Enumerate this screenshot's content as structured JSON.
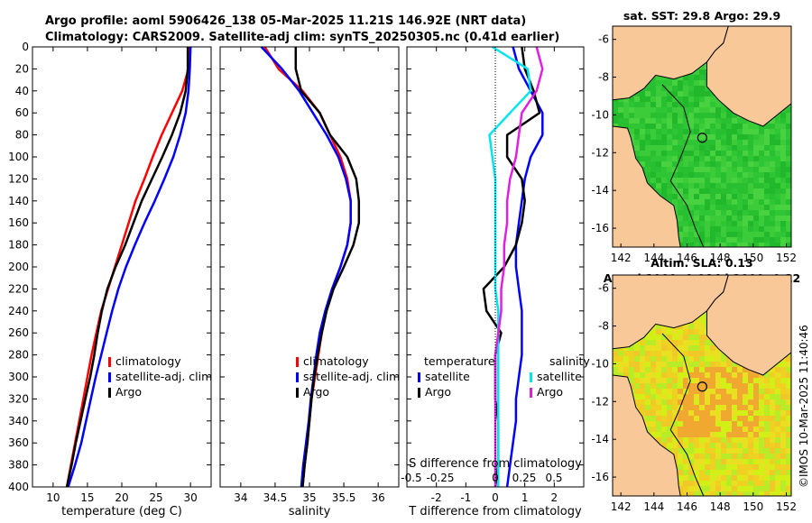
{
  "header": {
    "title_line1": "Argo profile: aoml 5906426_138 05-Mar-2025 11.21S 146.92E (NRT data)",
    "title_line2": "Climatology: CARS2009. Satellite-adj clim: synTS_20250305.nc (0.41d earlier)"
  },
  "colors": {
    "climatology": "#ff0000",
    "satellite": "#0000ff",
    "argo": "#000000",
    "salinity_sat": "#00e5ee",
    "salinity_argo": "#e020e0",
    "land": "#f8c898"
  },
  "chart_data": [
    {
      "type": "line",
      "name": "temperature",
      "xlabel": "temperature (deg C)",
      "xlim": [
        7,
        33
      ],
      "ylim": [
        400,
        0
      ],
      "xticks": [
        10,
        15,
        20,
        25,
        30
      ],
      "yticks": [
        0,
        20,
        40,
        60,
        80,
        100,
        120,
        140,
        160,
        180,
        200,
        220,
        240,
        260,
        280,
        300,
        320,
        340,
        360,
        380,
        400
      ],
      "legend": [
        "climatology",
        "satellite-adj. clim",
        "Argo"
      ],
      "series": [
        {
          "name": "climatology",
          "color": "#ff0000",
          "points": [
            [
              29.8,
              0
            ],
            [
              29.7,
              20
            ],
            [
              28.8,
              40
            ],
            [
              27.3,
              60
            ],
            [
              25.8,
              80
            ],
            [
              24.5,
              100
            ],
            [
              23.3,
              120
            ],
            [
              22,
              140
            ],
            [
              21,
              160
            ],
            [
              20,
              180
            ],
            [
              19,
              200
            ],
            [
              18,
              220
            ],
            [
              17,
              240
            ],
            [
              16.3,
              260
            ],
            [
              15.6,
              280
            ],
            [
              15,
              300
            ],
            [
              14.4,
              320
            ],
            [
              13.8,
              340
            ],
            [
              13.2,
              360
            ],
            [
              12.6,
              380
            ],
            [
              12,
              400
            ]
          ]
        },
        {
          "name": "satellite-adj. clim",
          "color": "#0000ff",
          "points": [
            [
              30,
              0
            ],
            [
              29.9,
              20
            ],
            [
              29.7,
              40
            ],
            [
              29.3,
              60
            ],
            [
              28.5,
              80
            ],
            [
              27.5,
              100
            ],
            [
              26.2,
              120
            ],
            [
              24.8,
              140
            ],
            [
              23.3,
              160
            ],
            [
              21.9,
              180
            ],
            [
              20.6,
              200
            ],
            [
              19.5,
              220
            ],
            [
              18.6,
              240
            ],
            [
              17.8,
              260
            ],
            [
              17,
              280
            ],
            [
              16.2,
              300
            ],
            [
              15.5,
              320
            ],
            [
              14.8,
              340
            ],
            [
              14.1,
              360
            ],
            [
              13.2,
              380
            ],
            [
              12.2,
              400
            ]
          ]
        },
        {
          "name": "Argo",
          "color": "#000000",
          "points": [
            [
              29.6,
              0
            ],
            [
              29.6,
              20
            ],
            [
              29.3,
              40
            ],
            [
              28.5,
              60
            ],
            [
              27.3,
              80
            ],
            [
              25.9,
              100
            ],
            [
              24.4,
              120
            ],
            [
              22.9,
              140
            ],
            [
              21.7,
              160
            ],
            [
              20.5,
              180
            ],
            [
              19.1,
              200
            ],
            [
              17.9,
              220
            ],
            [
              17.1,
              240
            ],
            [
              16.5,
              260
            ],
            [
              16,
              280
            ],
            [
              15.4,
              300
            ],
            [
              14.7,
              320
            ],
            [
              14,
              340
            ],
            [
              13.3,
              360
            ],
            [
              12.7,
              380
            ],
            [
              12,
              400
            ]
          ]
        }
      ]
    },
    {
      "type": "line",
      "name": "salinity",
      "xlabel": "salinity",
      "xlim": [
        33.7,
        36.3
      ],
      "ylim": [
        400,
        0
      ],
      "xticks": [
        34,
        34.5,
        35,
        35.5,
        36
      ],
      "legend": [
        "climatology",
        "satellite-adj. clim",
        "Argo"
      ],
      "series": [
        {
          "name": "climatology",
          "color": "#ff0000",
          "points": [
            [
              34.35,
              0
            ],
            [
              34.55,
              20
            ],
            [
              34.9,
              40
            ],
            [
              35.15,
              60
            ],
            [
              35.3,
              80
            ],
            [
              35.45,
              100
            ],
            [
              35.55,
              120
            ],
            [
              35.6,
              140
            ],
            [
              35.6,
              160
            ],
            [
              35.55,
              180
            ],
            [
              35.45,
              200
            ],
            [
              35.33,
              220
            ],
            [
              35.24,
              240
            ],
            [
              35.18,
              260
            ],
            [
              35.13,
              280
            ],
            [
              35.08,
              300
            ],
            [
              35.03,
              320
            ],
            [
              35.0,
              340
            ],
            [
              34.97,
              360
            ],
            [
              34.93,
              380
            ],
            [
              34.9,
              400
            ]
          ]
        },
        {
          "name": "satellite-adj. clim",
          "color": "#0000ff",
          "points": [
            [
              34.3,
              0
            ],
            [
              34.6,
              20
            ],
            [
              34.85,
              40
            ],
            [
              35.05,
              60
            ],
            [
              35.25,
              80
            ],
            [
              35.42,
              100
            ],
            [
              35.53,
              120
            ],
            [
              35.6,
              140
            ],
            [
              35.6,
              160
            ],
            [
              35.55,
              180
            ],
            [
              35.45,
              200
            ],
            [
              35.33,
              220
            ],
            [
              35.23,
              240
            ],
            [
              35.15,
              260
            ],
            [
              35.1,
              280
            ],
            [
              35.06,
              300
            ],
            [
              35.02,
              320
            ],
            [
              34.99,
              340
            ],
            [
              34.95,
              360
            ],
            [
              34.91,
              380
            ],
            [
              34.88,
              400
            ]
          ]
        },
        {
          "name": "Argo",
          "color": "#000000",
          "points": [
            [
              34.8,
              0
            ],
            [
              34.8,
              20
            ],
            [
              34.88,
              40
            ],
            [
              35.15,
              60
            ],
            [
              35.3,
              80
            ],
            [
              35.55,
              100
            ],
            [
              35.68,
              120
            ],
            [
              35.72,
              140
            ],
            [
              35.72,
              160
            ],
            [
              35.64,
              180
            ],
            [
              35.5,
              200
            ],
            [
              35.35,
              220
            ],
            [
              35.25,
              240
            ],
            [
              35.18,
              260
            ],
            [
              35.12,
              280
            ],
            [
              35.07,
              300
            ],
            [
              35.03,
              320
            ],
            [
              35.0,
              340
            ],
            [
              34.97,
              360
            ],
            [
              34.93,
              380
            ],
            [
              34.9,
              400
            ]
          ]
        }
      ]
    },
    {
      "type": "line",
      "name": "difference",
      "xlabel": "T difference from climatology",
      "xlabel2": "S difference from climatology",
      "xlim": [
        -3,
        3
      ],
      "ylim": [
        400,
        0
      ],
      "xticks": [
        -2,
        -1,
        0,
        1,
        2
      ],
      "s_ticks": [
        "-0.5",
        "-0.25",
        "0",
        "0.25",
        "0.5"
      ],
      "legend_temperature_title": "temperature",
      "legend_salinity_title": "salinity",
      "legend_entries": [
        "satellite",
        "Argo",
        "satellite",
        "Argo"
      ],
      "series": [
        {
          "name": "T satellite",
          "color": "#0000ff",
          "points": [
            [
              0.6,
              0
            ],
            [
              0.8,
              20
            ],
            [
              1.2,
              40
            ],
            [
              1.6,
              60
            ],
            [
              1.6,
              80
            ],
            [
              1.2,
              100
            ],
            [
              1.0,
              120
            ],
            [
              0.9,
              140
            ],
            [
              0.8,
              160
            ],
            [
              0.7,
              180
            ],
            [
              0.7,
              200
            ],
            [
              0.8,
              220
            ],
            [
              0.9,
              240
            ],
            [
              0.9,
              260
            ],
            [
              0.9,
              280
            ],
            [
              0.8,
              300
            ],
            [
              0.7,
              320
            ],
            [
              0.7,
              340
            ],
            [
              0.6,
              360
            ],
            [
              0.5,
              380
            ],
            [
              0.4,
              400
            ]
          ]
        },
        {
          "name": "T Argo",
          "color": "#000000",
          "points": [
            [
              0.9,
              0
            ],
            [
              1.0,
              20
            ],
            [
              1.3,
              40
            ],
            [
              1.5,
              60
            ],
            [
              0.4,
              80
            ],
            [
              0.4,
              100
            ],
            [
              0.9,
              120
            ],
            [
              1.0,
              140
            ],
            [
              0.9,
              160
            ],
            [
              0.7,
              180
            ],
            [
              0.3,
              200
            ],
            [
              -0.4,
              220
            ],
            [
              -0.3,
              240
            ],
            [
              0.2,
              260
            ],
            [
              0.0,
              280
            ],
            [
              0.0,
              300
            ],
            [
              0.0,
              320
            ],
            [
              0.1,
              340
            ],
            [
              0.1,
              360
            ],
            [
              0.1,
              380
            ],
            [
              0.0,
              400
            ]
          ]
        },
        {
          "name": "S satellite",
          "color": "#00e5ee",
          "points": [
            [
              -0.1,
              0
            ],
            [
              1.1,
              20
            ],
            [
              1.2,
              40
            ],
            [
              0.5,
              60
            ],
            [
              -0.2,
              80
            ],
            [
              -0.1,
              100
            ],
            [
              0.0,
              120
            ],
            [
              0.0,
              140
            ],
            [
              0.0,
              160
            ],
            [
              0.0,
              180
            ],
            [
              0.0,
              200
            ],
            [
              0.0,
              220
            ],
            [
              0.1,
              240
            ],
            [
              0.1,
              260
            ],
            [
              0.1,
              280
            ],
            [
              0.1,
              300
            ],
            [
              0.1,
              320
            ],
            [
              0.1,
              340
            ],
            [
              0.1,
              360
            ],
            [
              0.1,
              380
            ],
            [
              0.1,
              400
            ]
          ]
        },
        {
          "name": "S Argo",
          "color": "#e020e0",
          "points": [
            [
              1.4,
              0
            ],
            [
              1.6,
              20
            ],
            [
              1.4,
              40
            ],
            [
              0.9,
              60
            ],
            [
              0.8,
              80
            ],
            [
              0.7,
              100
            ],
            [
              0.5,
              120
            ],
            [
              0.4,
              140
            ],
            [
              0.4,
              160
            ],
            [
              0.3,
              180
            ],
            [
              0.3,
              200
            ],
            [
              0.2,
              220
            ],
            [
              0.2,
              240
            ],
            [
              0.1,
              260
            ],
            [
              0.0,
              280
            ],
            [
              0.0,
              300
            ],
            [
              0.0,
              320
            ],
            [
              0.0,
              340
            ],
            [
              0.0,
              360
            ],
            [
              0.0,
              380
            ],
            [
              0.0,
              400
            ]
          ]
        }
      ]
    },
    {
      "type": "heatmap",
      "name": "sst-map",
      "title": "sat. SST: 29.8 Argo: 29.9",
      "xticks": [
        142,
        144,
        146,
        148,
        150,
        152
      ],
      "yticks": [
        -6,
        -8,
        -10,
        -12,
        -14,
        -16
      ],
      "xlim": [
        141.5,
        152.3
      ],
      "ylim": [
        -17,
        -5.3
      ],
      "argo_position": {
        "lon": 146.92,
        "lat": -11.21
      }
    },
    {
      "type": "heatmap",
      "name": "sla-map",
      "title_line1": "Altim. SLA: 0.13",
      "title_line2": "Argo h1000: 0.084 h2000: 0.12",
      "xticks": [
        142,
        144,
        146,
        148,
        150,
        152
      ],
      "yticks": [
        -6,
        -8,
        -10,
        -12,
        -14,
        -16
      ],
      "xlim": [
        141.5,
        152.3
      ],
      "ylim": [
        -17,
        -5.3
      ],
      "argo_position": {
        "lon": 146.92,
        "lat": -11.21
      }
    }
  ],
  "footer_stamp": "©IMOS 10-Mar-2025 11:40:46"
}
